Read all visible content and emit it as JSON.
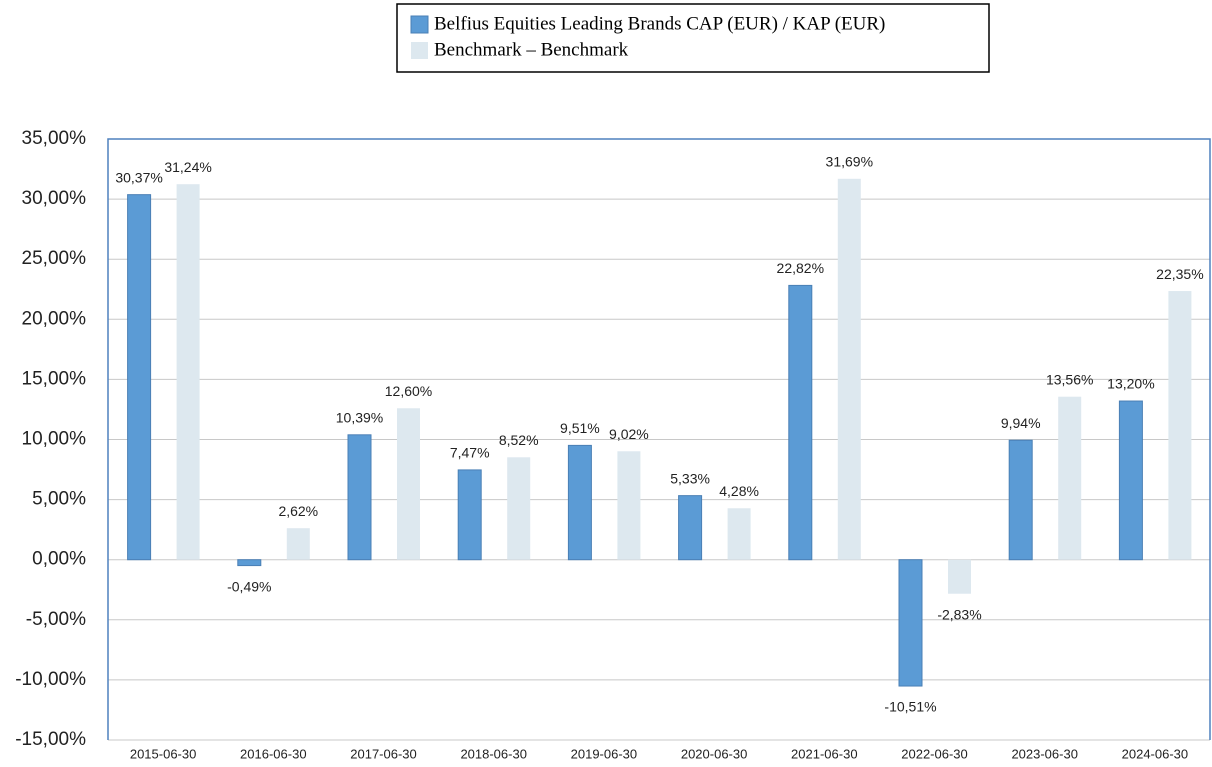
{
  "chart_data": {
    "type": "bar",
    "categories": [
      "2015-06-30",
      "2016-06-30",
      "2017-06-30",
      "2018-06-30",
      "2019-06-30",
      "2020-06-30",
      "2021-06-30",
      "2022-06-30",
      "2023-06-30",
      "2024-06-30"
    ],
    "series": [
      {
        "name": "Belfius Equities Leading Brands CAP (EUR) / KAP (EUR)",
        "color": "#5b9bd5",
        "values": [
          30.37,
          -0.49,
          10.39,
          7.47,
          9.51,
          5.33,
          22.82,
          -10.51,
          9.94,
          13.2
        ],
        "value_labels": [
          "30,37%",
          "-0,49%",
          "10,39%",
          "7,47%",
          "9,51%",
          "5,33%",
          "22,82%",
          "-10,51%",
          "9,94%",
          "13,20%"
        ]
      },
      {
        "name": "Benchmark – Benchmark",
        "color": "#dde8ef",
        "values": [
          31.24,
          2.62,
          12.6,
          8.52,
          9.02,
          4.28,
          31.69,
          -2.83,
          13.56,
          22.35
        ],
        "value_labels": [
          "31,24%",
          "2,62%",
          "12,60%",
          "8,52%",
          "9,02%",
          "4,28%",
          "31,69%",
          "-2,83%",
          "13,56%",
          "22,35%"
        ]
      }
    ],
    "ylim": [
      -15,
      35
    ],
    "yticks": [
      {
        "value": -15,
        "label": "-15,00%"
      },
      {
        "value": -10,
        "label": "-10,00%"
      },
      {
        "value": -5,
        "label": "-5,00%"
      },
      {
        "value": 0,
        "label": "0,00%"
      },
      {
        "value": 5,
        "label": "5,00%"
      },
      {
        "value": 10,
        "label": "10,00%"
      },
      {
        "value": 15,
        "label": "15,00%"
      },
      {
        "value": 20,
        "label": "20,00%"
      },
      {
        "value": 25,
        "label": "25,00%"
      },
      {
        "value": 30,
        "label": "30,00%"
      },
      {
        "value": 35,
        "label": "35,00%"
      }
    ],
    "grid": true,
    "legend": "top"
  }
}
